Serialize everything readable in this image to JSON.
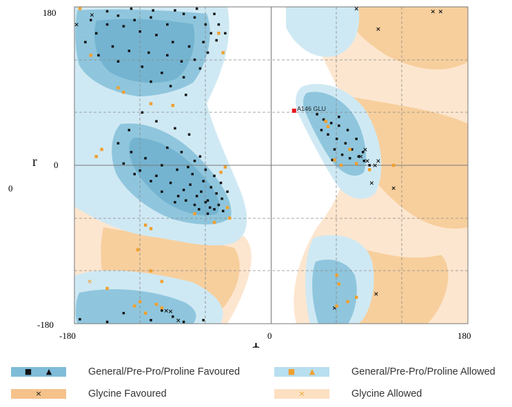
{
  "chart_data": {
    "type": "scatter",
    "title": "",
    "xlabel": "ϕ",
    "ylabel": "r",
    "xlim": [
      -180,
      180
    ],
    "ylim": [
      -180,
      180
    ],
    "x_ticks": [
      "-180",
      "0",
      "180"
    ],
    "y_ticks": [
      "180",
      "0",
      "-180"
    ],
    "side_label": "0",
    "colors": {
      "general_favoured": "#8fc6dd",
      "general_allowed": "#cfe9f4",
      "glycine_favoured": "#f7cf9d",
      "glycine_allowed": "#fde6cf",
      "general_point": "#111111",
      "allowed_point": "#f0a030",
      "outlier_point": "#e8151b"
    },
    "annotations": [
      {
        "text": "A146 GLU",
        "x": 26,
        "y": 62
      }
    ],
    "series": [
      {
        "name": "General/Pre-Pro/Proline Favoured",
        "marker": "square",
        "points": [
          [
            -140,
            170
          ],
          [
            -125,
            165
          ],
          [
            -110,
            168
          ],
          [
            -95,
            160
          ],
          [
            -80,
            172
          ],
          [
            -70,
            168
          ],
          [
            -60,
            160
          ],
          [
            -55,
            150
          ],
          [
            -62,
            140
          ],
          [
            -75,
            135
          ],
          [
            -90,
            140
          ],
          [
            -105,
            148
          ],
          [
            -120,
            152
          ],
          [
            -135,
            158
          ],
          [
            -150,
            160
          ],
          [
            -160,
            150
          ],
          [
            -145,
            135
          ],
          [
            -130,
            130
          ],
          [
            -112,
            128
          ],
          [
            -95,
            125
          ],
          [
            -82,
            118
          ],
          [
            -70,
            120
          ],
          [
            -58,
            128
          ],
          [
            -50,
            142
          ],
          [
            -48,
            160
          ],
          [
            -65,
            110
          ],
          [
            -80,
            100
          ],
          [
            -100,
            105
          ],
          [
            -118,
            112
          ],
          [
            -140,
            118
          ],
          [
            -158,
            125
          ],
          [
            -170,
            140
          ],
          [
            -165,
            165
          ],
          [
            -150,
            175
          ],
          [
            -128,
            178
          ],
          [
            -108,
            176
          ],
          [
            -88,
            176
          ],
          [
            -68,
            178
          ],
          [
            -52,
            172
          ],
          [
            -42,
            150
          ],
          [
            -110,
            95
          ],
          [
            -92,
            90
          ],
          [
            -78,
            80
          ],
          [
            -118,
            60
          ],
          [
            -105,
            50
          ],
          [
            -88,
            42
          ],
          [
            -75,
            35
          ],
          [
            -130,
            40
          ],
          [
            -140,
            25
          ],
          [
            -128,
            15
          ],
          [
            -115,
            8
          ],
          [
            -100,
            0
          ],
          [
            -86,
            -5
          ],
          [
            -72,
            -10
          ],
          [
            -62,
            -18
          ],
          [
            -55,
            -25
          ],
          [
            -50,
            -32
          ],
          [
            -45,
            -38
          ],
          [
            -58,
            -40
          ],
          [
            -68,
            -35
          ],
          [
            -80,
            -28
          ],
          [
            -92,
            -20
          ],
          [
            -105,
            -12
          ],
          [
            -120,
            -6
          ],
          [
            -135,
            2
          ],
          [
            -95,
            20
          ],
          [
            -82,
            15
          ],
          [
            -70,
            5
          ],
          [
            -60,
            -5
          ],
          [
            -52,
            -12
          ],
          [
            -48,
            -45
          ],
          [
            -56,
            -48
          ],
          [
            -64,
            -30
          ],
          [
            -74,
            -22
          ],
          [
            -40,
            -30
          ],
          [
            -46,
            -20
          ],
          [
            -85,
            -35
          ],
          [
            -100,
            -30
          ],
          [
            -110,
            -18
          ],
          [
            -125,
            -10
          ],
          [
            -66,
            -50
          ],
          [
            -58,
            -55
          ],
          [
            -52,
            -50
          ],
          [
            -44,
            -52
          ],
          [
            -60,
            -42
          ],
          [
            -70,
            -45
          ],
          [
            -78,
            -40
          ],
          [
            -88,
            -42
          ],
          [
            -76,
            -2
          ],
          [
            -65,
            10
          ],
          [
            42,
            58
          ],
          [
            48,
            52
          ],
          [
            55,
            48
          ],
          [
            62,
            45
          ],
          [
            70,
            40
          ],
          [
            60,
            30
          ],
          [
            68,
            25
          ],
          [
            74,
            18
          ],
          [
            80,
            10
          ],
          [
            85,
            5
          ],
          [
            90,
            0
          ],
          [
            72,
            8
          ],
          [
            65,
            12
          ],
          [
            58,
            18
          ],
          [
            52,
            35
          ],
          [
            46,
            40
          ],
          [
            62,
            55
          ],
          [
            78,
            30
          ],
          [
            84,
            15
          ],
          [
            56,
            6
          ],
          [
            -175,
            -175
          ],
          [
            -150,
            -178
          ],
          [
            -110,
            -176
          ],
          [
            -80,
            -178
          ],
          [
            -62,
            -176
          ],
          [
            -100,
            -165
          ],
          [
            -135,
            -168
          ],
          [
            -90,
            -172
          ]
        ]
      },
      {
        "name": "Glycine Favoured",
        "marker": "cross",
        "points": [
          [
            78,
            178
          ],
          [
            98,
            155
          ],
          [
            148,
            175
          ],
          [
            155,
            175
          ],
          [
            88,
            5
          ],
          [
            92,
            -20
          ],
          [
            95,
            0
          ],
          [
            98,
            5
          ],
          [
            86,
            18
          ],
          [
            82,
            10
          ],
          [
            112,
            -26
          ],
          [
            96,
            -146
          ],
          [
            58,
            -162
          ],
          [
            -92,
            -166
          ],
          [
            -85,
            -176
          ],
          [
            -178,
            160
          ],
          [
            -164,
            171
          ],
          [
            -96,
            -165
          ]
        ]
      },
      {
        "name": "General/Pre-Pro/Proline Allowed",
        "marker": "square",
        "points": [
          [
            -175,
            178
          ],
          [
            -165,
            125
          ],
          [
            -140,
            88
          ],
          [
            -135,
            83
          ],
          [
            -110,
            70
          ],
          [
            -90,
            68
          ],
          [
            -160,
            10
          ],
          [
            -155,
            18
          ],
          [
            -150,
            -140
          ],
          [
            -110,
            -120
          ],
          [
            -115,
            -68
          ],
          [
            -110,
            -72
          ],
          [
            -122,
            -96
          ],
          [
            -105,
            -158
          ],
          [
            -100,
            -162
          ],
          [
            -115,
            -168
          ],
          [
            -125,
            -160
          ],
          [
            -120,
            -155
          ],
          [
            -44,
            128
          ],
          [
            -48,
            150
          ],
          [
            -40,
            -48
          ],
          [
            -38,
            -60
          ],
          [
            -52,
            -65
          ],
          [
            -100,
            -132
          ],
          [
            -46,
            -8
          ],
          [
            -42,
            -2
          ],
          [
            -70,
            -55
          ],
          [
            50,
            50
          ],
          [
            52,
            44
          ],
          [
            58,
            6
          ],
          [
            64,
            0
          ],
          [
            72,
            18
          ],
          [
            78,
            2
          ],
          [
            90,
            -5
          ],
          [
            112,
            0
          ],
          [
            60,
            -125
          ],
          [
            62,
            -135
          ],
          [
            60,
            -160
          ],
          [
            70,
            -155
          ],
          [
            78,
            -150
          ]
        ]
      },
      {
        "name": "Glycine Allowed",
        "marker": "cross",
        "points": [
          [
            -166,
            -132
          ]
        ]
      },
      {
        "name": "Outlier",
        "marker": "square",
        "points": [
          [
            21,
            62
          ]
        ]
      }
    ]
  },
  "legend": [
    {
      "label": "General/Pre-Pro/Proline Favoured",
      "glyphs": [
        "■",
        "▲"
      ],
      "fill": "#7fbcd8",
      "glyph_color": "#111111"
    },
    {
      "label": "General/Pre-Pro/Proline Allowed",
      "glyphs": [
        "■",
        "▲"
      ],
      "fill": "#b7dff0",
      "glyph_color": "#f0a030"
    },
    {
      "label": "Glycine Favoured",
      "glyphs": [
        "×"
      ],
      "fill": "#f5c28a",
      "glyph_color": "#111111"
    },
    {
      "label": "Glycine Allowed",
      "glyphs": [
        "×"
      ],
      "fill": "#fde0c2",
      "glyph_color": "#f0a030"
    }
  ]
}
